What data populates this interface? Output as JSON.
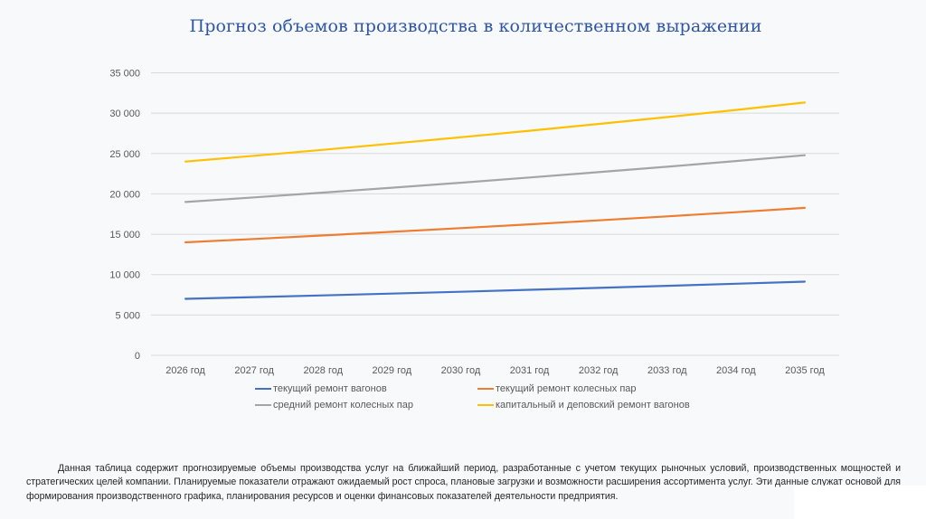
{
  "title": "Прогноз объемов производства в количественном выражении",
  "chart_data": {
    "type": "line",
    "title": "Прогноз объемов производства в количественном выражении",
    "xlabel": "",
    "ylabel": "",
    "categories": [
      "2026 год",
      "2027 год",
      "2028 год",
      "2029 год",
      "2030 год",
      "2031 год",
      "2032 год",
      "2033 год",
      "2034 год",
      "2035 год"
    ],
    "ylim": [
      0,
      35000
    ],
    "yticks": [
      0,
      5000,
      10000,
      15000,
      20000,
      25000,
      30000,
      35000
    ],
    "ytick_labels": [
      "0",
      "5 000",
      "10 000",
      "15 000",
      "20 000",
      "25 000",
      "30 000",
      "35 000"
    ],
    "grid": true,
    "legend_position": "bottom",
    "series": [
      {
        "name": "текущий ремонт вагонов",
        "color": "#4472c4",
        "values": [
          7000,
          7210,
          7426,
          7649,
          7879,
          8115,
          8358,
          8609,
          8867,
          9133
        ]
      },
      {
        "name": "текущий ремонт колесных пар",
        "color": "#ed7d31",
        "values": [
          14000,
          14420,
          14853,
          15298,
          15757,
          16230,
          16717,
          17218,
          17735,
          18267
        ]
      },
      {
        "name": "средний ремонт колесных пар",
        "color": "#a5a5a5",
        "values": [
          19000,
          19570,
          20157,
          20762,
          21385,
          22026,
          22687,
          23368,
          24069,
          24791
        ]
      },
      {
        "name": "капитальный и деповский ремонт вагонов",
        "color": "#ffc000",
        "values": [
          24000,
          24720,
          25462,
          26225,
          27012,
          27823,
          28657,
          29517,
          30402,
          31315
        ]
      }
    ]
  },
  "legend": [
    {
      "label": "текущий ремонт вагонов",
      "color": "#4472c4"
    },
    {
      "label": "текущий ремонт колесных пар",
      "color": "#ed7d31"
    },
    {
      "label": "средний ремонт колесных пар",
      "color": "#a5a5a5"
    },
    {
      "label": "капитальный и деповский ремонт вагонов",
      "color": "#ffc000"
    }
  ],
  "description": "Данная таблица содержит прогнозируемые объемы производства услуг на ближайший период, разработанные с учетом текущих рыночных условий, производственных мощностей и стратегических целей компании. Планируемые показатели отражают ожидаемый рост спроса, плановые загрузки и возможности расширения ассортимента услуг. Эти данные служат основой для формирования производственного графика, планирования ресурсов и оценки финансовых показателей деятельности предприятия."
}
